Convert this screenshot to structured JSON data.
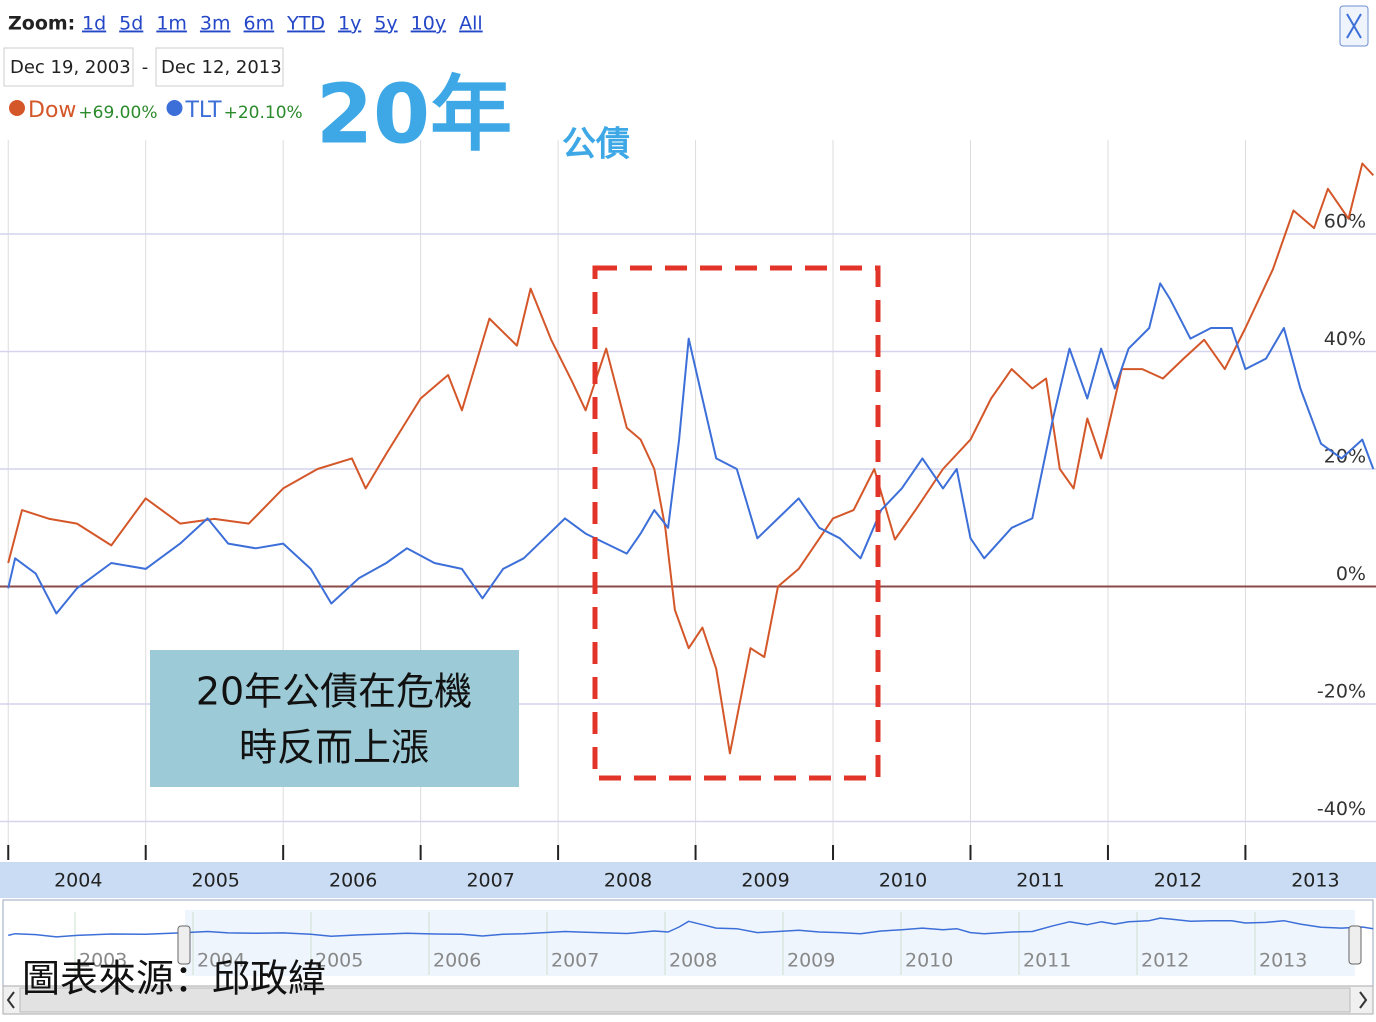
{
  "toolbar": {
    "zoom_label": "Zoom:",
    "ranges": [
      "1d",
      "5d",
      "1m",
      "3m",
      "6m",
      "YTD",
      "1y",
      "5y",
      "10y",
      "All"
    ],
    "start_date": "Dec 19, 2003",
    "separator": "-",
    "end_date": "Dec 12, 2013"
  },
  "chart_data": {
    "type": "line",
    "title": "20年",
    "subtitle": "公債",
    "annotation": [
      "20年公債在危機",
      "時反而上漲"
    ],
    "source": "圖表來源：邱政緯",
    "xlim": [
      2003.94,
      2013.95
    ],
    "xticks": [
      2004,
      2005,
      2006,
      2007,
      2008,
      2009,
      2010,
      2011,
      2012,
      2013
    ],
    "ylim": [
      -44,
      76
    ],
    "yticks": [
      {
        "value": -40,
        "label": "-40%"
      },
      {
        "value": -20,
        "label": "-20%"
      },
      {
        "value": 0,
        "label": "0%"
      },
      {
        "value": 20,
        "label": "20%"
      },
      {
        "value": 40,
        "label": "40%"
      },
      {
        "value": 60,
        "label": "60%"
      }
    ],
    "grid": true,
    "navigator_labels": [
      "2003",
      "2004",
      "2005",
      "2006",
      "2007",
      "2008",
      "2009",
      "2010",
      "2011",
      "2012",
      "2013"
    ],
    "series": [
      {
        "name": "Dow",
        "change_label": "+69.00%",
        "color": "#d4572a",
        "x": [
          2004.0,
          2004.1,
          2004.3,
          2004.5,
          2004.75,
          2005.0,
          2005.25,
          2005.5,
          2005.75,
          2006.0,
          2006.25,
          2006.5,
          2006.6,
          2006.75,
          2007.0,
          2007.2,
          2007.3,
          2007.5,
          2007.7,
          2007.8,
          2007.95,
          2008.1,
          2008.2,
          2008.35,
          2008.5,
          2008.6,
          2008.7,
          2008.78,
          2008.85,
          2008.95,
          2009.05,
          2009.15,
          2009.25,
          2009.4,
          2009.5,
          2009.6,
          2009.75,
          2010.0,
          2010.15,
          2010.3,
          2010.45,
          2010.6,
          2010.8,
          2011.0,
          2011.15,
          2011.3,
          2011.45,
          2011.55,
          2011.65,
          2011.75,
          2011.85,
          2011.95,
          2012.1,
          2012.25,
          2012.4,
          2012.55,
          2012.7,
          2012.85,
          2013.0,
          2013.2,
          2013.35,
          2013.5,
          2013.6,
          2013.75,
          2013.85,
          2013.93
        ],
        "values": [
          4,
          13,
          11.5,
          10.7,
          7,
          15,
          10.7,
          11.5,
          10.7,
          16.7,
          20,
          21.8,
          16.7,
          22.6,
          32,
          36,
          30,
          45.6,
          41,
          50.7,
          42,
          35,
          30,
          40.5,
          27,
          25,
          20,
          10,
          -4,
          -10.5,
          -7,
          -14,
          -28.4,
          -10.5,
          -12,
          0,
          3,
          11.6,
          13,
          20,
          8,
          13,
          20,
          25,
          32,
          37,
          33.7,
          35.4,
          20,
          16.7,
          28.6,
          21.8,
          37,
          37,
          35.4,
          38.8,
          42,
          37,
          44,
          54,
          64,
          61,
          67.7,
          62.6,
          72,
          70
        ]
      },
      {
        "name": "TLT",
        "change_label": "+20.10%",
        "color": "#3d6fd9",
        "x": [
          2004.0,
          2004.05,
          2004.2,
          2004.35,
          2004.5,
          2004.75,
          2005.0,
          2005.25,
          2005.45,
          2005.6,
          2005.8,
          2006.0,
          2006.2,
          2006.35,
          2006.55,
          2006.75,
          2006.9,
          2007.1,
          2007.3,
          2007.45,
          2007.6,
          2007.75,
          2007.9,
          2008.05,
          2008.2,
          2008.35,
          2008.5,
          2008.6,
          2008.7,
          2008.8,
          2008.88,
          2008.95,
          2009.05,
          2009.15,
          2009.3,
          2009.45,
          2009.6,
          2009.75,
          2009.9,
          2010.05,
          2010.2,
          2010.35,
          2010.5,
          2010.65,
          2010.8,
          2010.9,
          2011.0,
          2011.1,
          2011.3,
          2011.45,
          2011.6,
          2011.72,
          2011.85,
          2011.95,
          2012.05,
          2012.15,
          2012.3,
          2012.38,
          2012.45,
          2012.6,
          2012.75,
          2012.9,
          2013.0,
          2013.15,
          2013.28,
          2013.4,
          2013.55,
          2013.7,
          2013.85,
          2013.93
        ],
        "values": [
          -0.3,
          4.8,
          2.2,
          -4.6,
          -0.3,
          4,
          3,
          7.3,
          11.6,
          7.3,
          6.5,
          7.3,
          3,
          -2.9,
          1.4,
          4,
          6.5,
          4,
          3,
          -2,
          3,
          4.8,
          8.2,
          11.6,
          9,
          7.3,
          5.6,
          9,
          13,
          10,
          25,
          42.2,
          32,
          21.8,
          20,
          8.2,
          11.6,
          15,
          10,
          8.2,
          4.8,
          13,
          16.7,
          21.8,
          16.7,
          20,
          8.2,
          4.8,
          10,
          11.6,
          28.6,
          40.5,
          32,
          40.5,
          33.7,
          40.5,
          44,
          51.6,
          49,
          42.2,
          44,
          44,
          37,
          38.8,
          44,
          33.7,
          24.3,
          21.8,
          25,
          20
        ]
      }
    ]
  }
}
